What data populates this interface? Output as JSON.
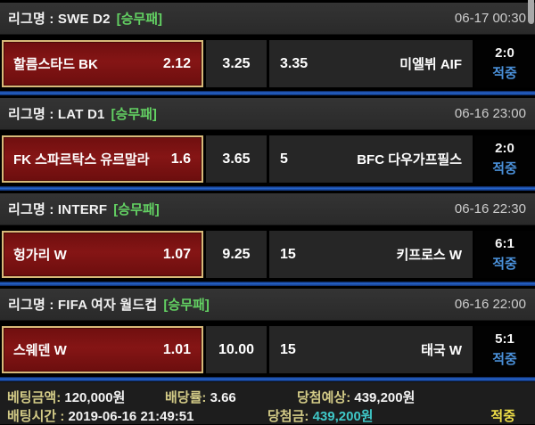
{
  "colors": {
    "bet_type_green": "#63d161",
    "hit_blue": "#4a90d9",
    "selected_maroon": "#7c1212",
    "selected_gold_border": "#d8ba79",
    "divider_blue": "#2767d2",
    "label_khaki": "#d3cb87",
    "win_cyan": "#3fc8c8",
    "final_hit_yellow": "#f0df48"
  },
  "matches": [
    {
      "league_label": "리그명 : SWE D2",
      "bet_type": "[승무패]",
      "datetime": "06-17 00:30",
      "home_team": "할름스타드 BK",
      "home_odds": "2.12",
      "draw_odds": "3.25",
      "away_odds": "3.35",
      "away_team": "미엘뷔 AIF",
      "score": "2:0",
      "result": "적중"
    },
    {
      "league_label": "리그명 : LAT D1",
      "bet_type": "[승무패]",
      "datetime": "06-16 23:00",
      "home_team": "FK 스파르탁스 유르말라",
      "home_odds": "1.6",
      "draw_odds": "3.65",
      "away_odds": "5",
      "away_team": "BFC 다우가프필스",
      "score": "2:0",
      "result": "적중"
    },
    {
      "league_label": "리그명 : INTERF",
      "bet_type": "[승무패]",
      "datetime": "06-16 22:30",
      "home_team": "헝가리 W",
      "home_odds": "1.07",
      "draw_odds": "9.25",
      "away_odds": "15",
      "away_team": "키프로스 W",
      "score": "6:1",
      "result": "적중"
    },
    {
      "league_label": "리그명 : FIFA 여자 월드컵",
      "bet_type": "[승무패]",
      "datetime": "06-16 22:00",
      "home_team": "스웨덴 W",
      "home_odds": "1.01",
      "draw_odds": "10.00",
      "away_odds": "15",
      "away_team": "태국 W",
      "score": "5:1",
      "result": "적중"
    }
  ],
  "summary": {
    "bet_amount_label": "베팅금액:",
    "bet_amount_value": "120,000원",
    "total_odds_label": "배당률:",
    "total_odds_value": "3.66",
    "expected_label": "당첨예상:",
    "expected_value": "439,200원",
    "bet_time_label": "배팅시간 :",
    "bet_time_value": "2019-06-16 21:49:51",
    "win_label": "당첨금:",
    "win_value": "439,200원",
    "final_result": "적중"
  }
}
